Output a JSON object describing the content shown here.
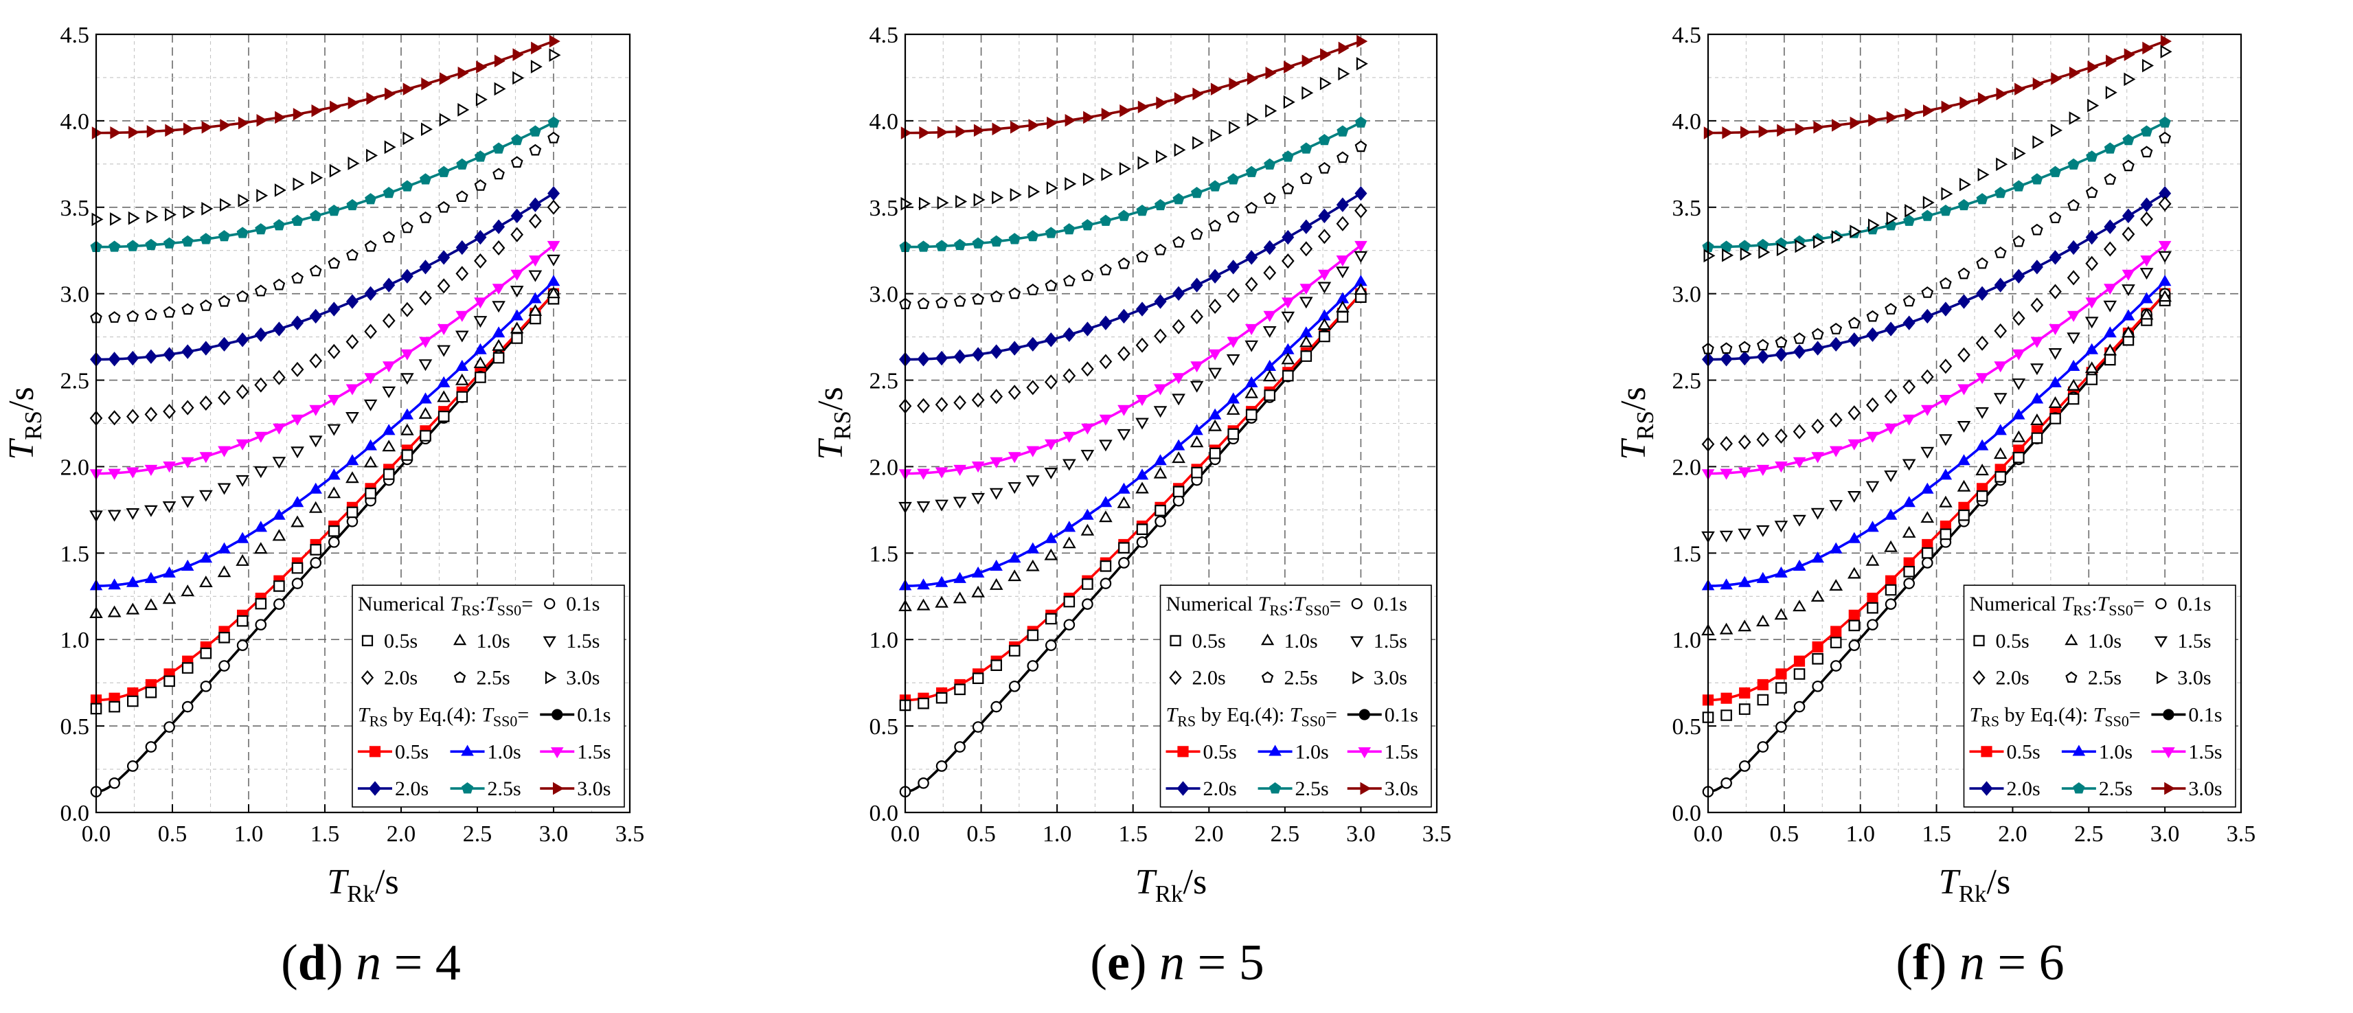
{
  "chart_data": [
    {
      "type": "line",
      "panel_label": "d",
      "caption_var": "n",
      "caption_value": "4",
      "xlabel": "T",
      "xlabel_sub": "Rk",
      "xlabel_unit": "/s",
      "ylabel": "T",
      "ylabel_sub": "RS",
      "ylabel_unit": "/s",
      "xlim": [
        0,
        3.5
      ],
      "ylim": [
        0,
        4.5
      ],
      "xticks": [
        "0.0",
        "0.5",
        "1.0",
        "1.5",
        "2.0",
        "2.5",
        "3.0",
        "3.5"
      ],
      "yticks": [
        "0.0",
        "0.5",
        "1.0",
        "1.5",
        "2.0",
        "2.5",
        "3.0",
        "3.5",
        "4.0",
        "4.5"
      ],
      "grid": true,
      "legend": {
        "position": "bottom-right",
        "numerical_prefix": "Numerical ",
        "numerical_var": "T",
        "numerical_var_sub": "RS",
        "numerical_sep": ":",
        "tss0_var": "T",
        "tss0_sub": "SS0",
        "eq_sign": "=",
        "eq_var": "T",
        "eq_var_sub": "RS",
        "eq_text": " by Eq.(4):",
        "numerical_entries": [
          "0.1s",
          "0.5s",
          "1.0s",
          "1.5s",
          "2.0s",
          "2.5s",
          "3.0s"
        ],
        "equation_entries": [
          "0.1s",
          "0.5s",
          "1.0s",
          "1.5s",
          "2.0s",
          "2.5s",
          "3.0s"
        ]
      },
      "series": [
        {
          "name": "Eq.(4) T_SS0=0.1s",
          "color": "#000000",
          "marker": "circle",
          "x": [
            0,
            3
          ],
          "shape": "hyperbola",
          "y0": 0.12,
          "y_end": 3.0
        },
        {
          "name": "Eq.(4) T_SS0=0.5s",
          "color": "#ff0000",
          "marker": "square",
          "x": [
            0,
            3
          ],
          "shape": "hyperbola",
          "y0": 0.65,
          "y_end": 3.0
        },
        {
          "name": "Eq.(4) T_SS0=1.0s",
          "color": "#0000ff",
          "marker": "triangle-up",
          "x": [
            0,
            3
          ],
          "shape": "hyperbola",
          "y0": 1.31,
          "y_end": 3.07
        },
        {
          "name": "Eq.(4) T_SS0=1.5s",
          "color": "#ff00ff",
          "marker": "triangle-down",
          "x": [
            0,
            3
          ],
          "shape": "hyperbola",
          "y0": 1.96,
          "y_end": 3.28
        },
        {
          "name": "Eq.(4) T_SS0=2.0s",
          "color": "#00008b",
          "marker": "diamond",
          "x": [
            0,
            3
          ],
          "shape": "hyperbola",
          "y0": 2.62,
          "y_end": 3.58
        },
        {
          "name": "Eq.(4) T_SS0=2.5s",
          "color": "#008080",
          "marker": "pentagon",
          "x": [
            0,
            3
          ],
          "shape": "hyperbola",
          "y0": 3.27,
          "y_end": 3.99
        },
        {
          "name": "Eq.(4) T_SS0=3.0s",
          "color": "#8b0000",
          "marker": "triangle-right",
          "x": [
            0,
            3
          ],
          "shape": "hyperbola",
          "y0": 3.93,
          "y_end": 4.46
        },
        {
          "name": "Numerical T_SS0=0.1s",
          "color": "#000000",
          "marker": "circle-open",
          "x": [
            0,
            3
          ],
          "shape": "hyperbola",
          "y0": 0.12,
          "y_end": 3.0
        },
        {
          "name": "Numerical T_SS0=0.5s",
          "color": "#000000",
          "marker": "square-open",
          "x": [
            0,
            3
          ],
          "shape": "hyperbola",
          "y0": 0.6,
          "y_end": 2.97
        },
        {
          "name": "Numerical T_SS0=1.0s",
          "color": "#000000",
          "marker": "triangle-up-open",
          "x": [
            0,
            3
          ],
          "shape": "hyperbola",
          "y0": 1.15,
          "y_end": 3.0
        },
        {
          "name": "Numerical T_SS0=1.5s",
          "color": "#000000",
          "marker": "triangle-down-open",
          "x": [
            0,
            3
          ],
          "shape": "hyperbola",
          "y0": 1.72,
          "y_end": 3.2
        },
        {
          "name": "Numerical T_SS0=2.0s",
          "color": "#000000",
          "marker": "diamond-open",
          "x": [
            0,
            3
          ],
          "shape": "hyperbola",
          "y0": 2.28,
          "y_end": 3.5
        },
        {
          "name": "Numerical T_SS0=2.5s",
          "color": "#000000",
          "marker": "pentagon-open",
          "x": [
            0,
            3
          ],
          "shape": "hyperbola",
          "y0": 2.86,
          "y_end": 3.9
        },
        {
          "name": "Numerical T_SS0=3.0s",
          "color": "#000000",
          "marker": "triangle-right-open",
          "x": [
            0,
            3
          ],
          "shape": "hyperbola",
          "y0": 3.43,
          "y_end": 4.38
        }
      ]
    },
    {
      "type": "line",
      "panel_label": "e",
      "caption_var": "n",
      "caption_value": "5",
      "xlabel": "T",
      "xlabel_sub": "Rk",
      "xlabel_unit": "/s",
      "ylabel": "T",
      "ylabel_sub": "RS",
      "ylabel_unit": "/s",
      "xlim": [
        0,
        3.5
      ],
      "ylim": [
        0,
        4.5
      ],
      "xticks": [
        "0.0",
        "0.5",
        "1.0",
        "1.5",
        "2.0",
        "2.5",
        "3.0",
        "3.5"
      ],
      "yticks": [
        "0.0",
        "0.5",
        "1.0",
        "1.5",
        "2.0",
        "2.5",
        "3.0",
        "3.5",
        "4.0",
        "4.5"
      ],
      "grid": true,
      "legend": {
        "position": "bottom-right",
        "numerical_prefix": "Numerical ",
        "numerical_var": "T",
        "numerical_var_sub": "RS",
        "numerical_sep": ":",
        "tss0_var": "T",
        "tss0_sub": "SS0",
        "eq_sign": "=",
        "eq_var": "T",
        "eq_var_sub": "RS",
        "eq_text": " by Eq.(4):",
        "numerical_entries": [
          "0.1s",
          "0.5s",
          "1.0s",
          "1.5s",
          "2.0s",
          "2.5s",
          "3.0s"
        ],
        "equation_entries": [
          "0.1s",
          "0.5s",
          "1.0s",
          "1.5s",
          "2.0s",
          "2.5s",
          "3.0s"
        ]
      },
      "series": [
        {
          "name": "Eq.(4) T_SS0=0.1s",
          "color": "#000000",
          "marker": "circle",
          "x": [
            0,
            3
          ],
          "shape": "hyperbola",
          "y0": 0.12,
          "y_end": 3.0
        },
        {
          "name": "Eq.(4) T_SS0=0.5s",
          "color": "#ff0000",
          "marker": "square",
          "x": [
            0,
            3
          ],
          "shape": "hyperbola",
          "y0": 0.65,
          "y_end": 3.0
        },
        {
          "name": "Eq.(4) T_SS0=1.0s",
          "color": "#0000ff",
          "marker": "triangle-up",
          "x": [
            0,
            3
          ],
          "shape": "hyperbola",
          "y0": 1.31,
          "y_end": 3.07
        },
        {
          "name": "Eq.(4) T_SS0=1.5s",
          "color": "#ff00ff",
          "marker": "triangle-down",
          "x": [
            0,
            3
          ],
          "shape": "hyperbola",
          "y0": 1.96,
          "y_end": 3.28
        },
        {
          "name": "Eq.(4) T_SS0=2.0s",
          "color": "#00008b",
          "marker": "diamond",
          "x": [
            0,
            3
          ],
          "shape": "hyperbola",
          "y0": 2.62,
          "y_end": 3.58
        },
        {
          "name": "Eq.(4) T_SS0=2.5s",
          "color": "#008080",
          "marker": "pentagon",
          "x": [
            0,
            3
          ],
          "shape": "hyperbola",
          "y0": 3.27,
          "y_end": 3.99
        },
        {
          "name": "Eq.(4) T_SS0=3.0s",
          "color": "#8b0000",
          "marker": "triangle-right",
          "x": [
            0,
            3
          ],
          "shape": "hyperbola",
          "y0": 3.93,
          "y_end": 4.46
        },
        {
          "name": "Numerical T_SS0=0.1s",
          "color": "#000000",
          "marker": "circle-open",
          "x": [
            0,
            3
          ],
          "shape": "hyperbola",
          "y0": 0.12,
          "y_end": 3.0
        },
        {
          "name": "Numerical T_SS0=0.5s",
          "color": "#000000",
          "marker": "square-open",
          "x": [
            0,
            3
          ],
          "shape": "hyperbola",
          "y0": 0.62,
          "y_end": 2.98
        },
        {
          "name": "Numerical T_SS0=1.0s",
          "color": "#000000",
          "marker": "triangle-up-open",
          "x": [
            0,
            3
          ],
          "shape": "hyperbola",
          "y0": 1.19,
          "y_end": 3.02
        },
        {
          "name": "Numerical T_SS0=1.5s",
          "color": "#000000",
          "marker": "triangle-down-open",
          "x": [
            0,
            3
          ],
          "shape": "hyperbola",
          "y0": 1.77,
          "y_end": 3.22
        },
        {
          "name": "Numerical T_SS0=2.0s",
          "color": "#000000",
          "marker": "diamond-open",
          "x": [
            0,
            3
          ],
          "shape": "hyperbola",
          "y0": 2.35,
          "y_end": 3.48
        },
        {
          "name": "Numerical T_SS0=2.5s",
          "color": "#000000",
          "marker": "pentagon-open",
          "x": [
            0,
            3
          ],
          "shape": "hyperbola",
          "y0": 2.94,
          "y_end": 3.85
        },
        {
          "name": "Numerical T_SS0=3.0s",
          "color": "#000000",
          "marker": "triangle-right-open",
          "x": [
            0,
            3
          ],
          "shape": "hyperbola",
          "y0": 3.52,
          "y_end": 4.33
        }
      ]
    },
    {
      "type": "line",
      "panel_label": "f",
      "caption_var": "n",
      "caption_value": "6",
      "xlabel": "T",
      "xlabel_sub": "Rk",
      "xlabel_unit": "/s",
      "ylabel": "T",
      "ylabel_sub": "RS",
      "ylabel_unit": "/s",
      "xlim": [
        0,
        3.5
      ],
      "ylim": [
        0,
        4.5
      ],
      "xticks": [
        "0.0",
        "0.5",
        "1.0",
        "1.5",
        "2.0",
        "2.5",
        "3.0",
        "3.5"
      ],
      "yticks": [
        "0.0",
        "0.5",
        "1.0",
        "1.5",
        "2.0",
        "2.5",
        "3.0",
        "3.5",
        "4.0",
        "4.5"
      ],
      "grid": true,
      "legend": {
        "position": "bottom-right",
        "numerical_prefix": "Numerical ",
        "numerical_var": "T",
        "numerical_var_sub": "RS",
        "numerical_sep": ":",
        "tss0_var": "T",
        "tss0_sub": "SS0",
        "eq_sign": "=",
        "eq_var": "T",
        "eq_var_sub": "RS",
        "eq_text": " by Eq.(4):",
        "numerical_entries": [
          "0.1s",
          "0.5s",
          "1.0s",
          "1.5s",
          "2.0s",
          "2.5s",
          "3.0s"
        ],
        "equation_entries": [
          "0.1s",
          "0.5s",
          "1.0s",
          "1.5s",
          "2.0s",
          "2.5s",
          "3.0s"
        ]
      },
      "series": [
        {
          "name": "Eq.(4) T_SS0=0.1s",
          "color": "#000000",
          "marker": "circle",
          "x": [
            0,
            3
          ],
          "shape": "hyperbola",
          "y0": 0.12,
          "y_end": 3.0
        },
        {
          "name": "Eq.(4) T_SS0=0.5s",
          "color": "#ff0000",
          "marker": "square",
          "x": [
            0,
            3
          ],
          "shape": "hyperbola",
          "y0": 0.65,
          "y_end": 3.0
        },
        {
          "name": "Eq.(4) T_SS0=1.0s",
          "color": "#0000ff",
          "marker": "triangle-up",
          "x": [
            0,
            3
          ],
          "shape": "hyperbola",
          "y0": 1.31,
          "y_end": 3.07
        },
        {
          "name": "Eq.(4) T_SS0=1.5s",
          "color": "#ff00ff",
          "marker": "triangle-down",
          "x": [
            0,
            3
          ],
          "shape": "hyperbola",
          "y0": 1.96,
          "y_end": 3.28
        },
        {
          "name": "Eq.(4) T_SS0=2.0s",
          "color": "#00008b",
          "marker": "diamond",
          "x": [
            0,
            3
          ],
          "shape": "hyperbola",
          "y0": 2.62,
          "y_end": 3.58
        },
        {
          "name": "Eq.(4) T_SS0=2.5s",
          "color": "#008080",
          "marker": "pentagon",
          "x": [
            0,
            3
          ],
          "shape": "hyperbola",
          "y0": 3.27,
          "y_end": 3.99
        },
        {
          "name": "Eq.(4) T_SS0=3.0s",
          "color": "#8b0000",
          "marker": "triangle-right",
          "x": [
            0,
            3
          ],
          "shape": "hyperbola",
          "y0": 3.93,
          "y_end": 4.46
        },
        {
          "name": "Numerical T_SS0=0.1s",
          "color": "#000000",
          "marker": "circle-open",
          "x": [
            0,
            3
          ],
          "shape": "hyperbola",
          "y0": 0.12,
          "y_end": 3.0
        },
        {
          "name": "Numerical T_SS0=0.5s",
          "color": "#000000",
          "marker": "square-open",
          "x": [
            0,
            3
          ],
          "shape": "hyperbola",
          "y0": 0.55,
          "y_end": 2.96
        },
        {
          "name": "Numerical T_SS0=1.0s",
          "color": "#000000",
          "marker": "triangle-up-open",
          "x": [
            0,
            3
          ],
          "shape": "hyperbola",
          "y0": 1.05,
          "y_end": 2.98
        },
        {
          "name": "Numerical T_SS0=1.5s",
          "color": "#000000",
          "marker": "triangle-down-open",
          "x": [
            0,
            3
          ],
          "shape": "hyperbola",
          "y0": 1.6,
          "y_end": 3.22
        },
        {
          "name": "Numerical T_SS0=2.0s",
          "color": "#000000",
          "marker": "diamond-open",
          "x": [
            0,
            3
          ],
          "shape": "hyperbola",
          "y0": 2.13,
          "y_end": 3.52
        },
        {
          "name": "Numerical T_SS0=2.5s",
          "color": "#000000",
          "marker": "pentagon-open",
          "x": [
            0,
            3
          ],
          "shape": "hyperbola",
          "y0": 2.68,
          "y_end": 3.9
        },
        {
          "name": "Numerical T_SS0=3.0s",
          "color": "#000000",
          "marker": "triangle-right-open",
          "x": [
            0,
            3
          ],
          "shape": "hyperbola",
          "y0": 3.22,
          "y_end": 4.4
        }
      ]
    }
  ]
}
